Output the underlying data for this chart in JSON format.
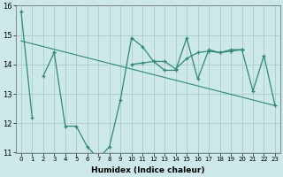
{
  "xlabel": "Humidex (Indice chaleur)",
  "x": [
    0,
    1,
    2,
    3,
    4,
    5,
    6,
    7,
    8,
    9,
    10,
    11,
    12,
    13,
    14,
    15,
    16,
    17,
    18,
    19,
    20,
    21,
    22,
    23
  ],
  "line_jagged": [
    15.8,
    12.2,
    null,
    14.4,
    11.9,
    11.9,
    11.2,
    10.8,
    11.2,
    12.8,
    14.9,
    14.6,
    14.1,
    13.8,
    13.8,
    14.9,
    13.5,
    14.5,
    14.4,
    14.5,
    14.5,
    13.1,
    14.3,
    12.6
  ],
  "line_flat": [
    null,
    null,
    13.6,
    14.4,
    null,
    null,
    null,
    null,
    null,
    null,
    14.0,
    14.05,
    14.1,
    14.1,
    13.85,
    14.2,
    14.4,
    14.45,
    14.4,
    14.45,
    14.5,
    null,
    null,
    null
  ],
  "line_trend_x": [
    0,
    23
  ],
  "line_trend_y": [
    14.8,
    12.6
  ],
  "line_color": "#2e8b6e",
  "background_color": "#cce8e8",
  "grid_color": "#aacccc",
  "ylim": [
    11,
    16
  ],
  "xlim": [
    -0.5,
    23.5
  ],
  "yticks": [
    11,
    12,
    13,
    14,
    15,
    16
  ],
  "xtick_fontsize": 5.0,
  "ytick_fontsize": 6.0,
  "xlabel_fontsize": 6.5
}
